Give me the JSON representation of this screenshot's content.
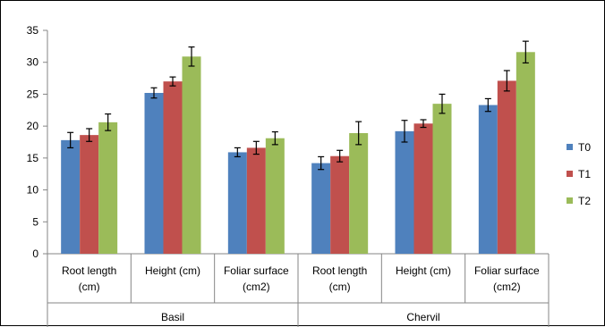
{
  "chart_data": {
    "type": "bar",
    "title": "",
    "xlabel": "",
    "ylabel": "",
    "ylim": [
      0,
      35
    ],
    "yticks": [
      0,
      5,
      10,
      15,
      20,
      25,
      30,
      35
    ],
    "grid": false,
    "legend_position": "right",
    "groups": [
      {
        "label": "Basil",
        "categories": [
          [
            "Root length",
            "(cm)"
          ],
          [
            "Height (cm)"
          ],
          [
            "Foliar surface",
            "(cm2)"
          ]
        ]
      },
      {
        "label": "Chervil",
        "categories": [
          [
            "Root length",
            "(cm)"
          ],
          [
            "Height (cm)"
          ],
          [
            "Foliar surface",
            "(cm2)"
          ]
        ]
      }
    ],
    "series": [
      {
        "name": "T0",
        "color": "#4f81bd",
        "values": [
          17.8,
          25.2,
          15.9,
          14.2,
          19.2,
          23.3
        ],
        "errors": [
          1.2,
          0.8,
          0.7,
          1.0,
          1.7,
          1.0
        ]
      },
      {
        "name": "T1",
        "color": "#c0504d",
        "values": [
          18.6,
          27.0,
          16.6,
          15.3,
          20.4,
          27.1
        ],
        "errors": [
          1.0,
          0.7,
          1.0,
          0.9,
          0.6,
          1.6
        ]
      },
      {
        "name": "T2",
        "color": "#9bbb59",
        "values": [
          20.6,
          30.9,
          18.1,
          18.9,
          23.5,
          31.6
        ],
        "errors": [
          1.3,
          1.5,
          1.0,
          1.8,
          1.5,
          1.7
        ]
      }
    ]
  }
}
